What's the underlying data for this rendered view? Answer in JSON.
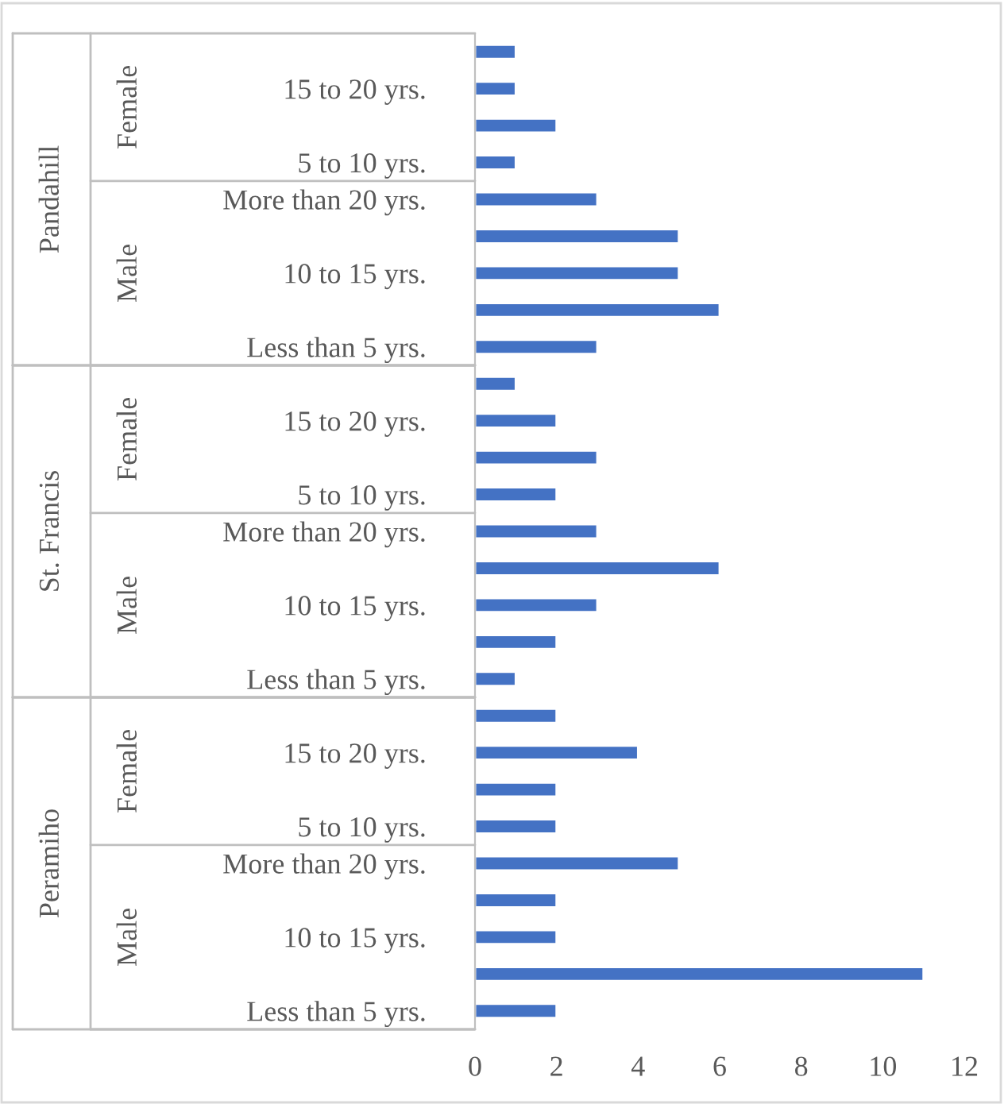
{
  "chart_data": {
    "type": "bar",
    "orientation": "horizontal",
    "categories": [
      null,
      "15 to 20 yrs.",
      null,
      "5 to 10 yrs.",
      "More than 20 yrs.",
      null,
      "10 to 15 yrs.",
      null,
      "Less than 5 yrs.",
      null,
      "15 to 20 yrs.",
      null,
      "5 to 10 yrs.",
      "More than 20 yrs.",
      null,
      "10 to 15 yrs.",
      null,
      "Less than 5 yrs.",
      null,
      "15 to 20 yrs.",
      null,
      "5 to 10 yrs.",
      "More than 20 yrs.",
      null,
      "10 to 15 yrs.",
      null,
      "Less than 5 yrs."
    ],
    "values": [
      1,
      1,
      2,
      1,
      3,
      5,
      5,
      6,
      3,
      1,
      2,
      3,
      2,
      3,
      6,
      3,
      2,
      1,
      2,
      4,
      2,
      2,
      5,
      2,
      2,
      11,
      2
    ],
    "color": "#4472c4",
    "xlim": [
      0,
      12
    ],
    "xticks": [
      0,
      2,
      4,
      6,
      8,
      10,
      12
    ],
    "annotations": [
      "Pandahill",
      "Female",
      "Male",
      "St. Francis",
      "Female",
      "Male",
      "Peramiho",
      "Female",
      "Male"
    ]
  }
}
